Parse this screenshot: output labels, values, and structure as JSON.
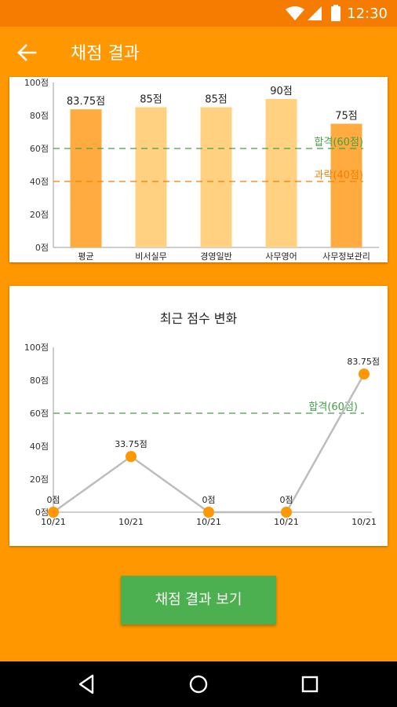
{
  "status_bar": {
    "time": "12:30",
    "icons": [
      "wifi-icon",
      "signal-icon",
      "battery-icon"
    ]
  },
  "app_bar": {
    "title": "채점 결과",
    "back_icon": "arrow-left-icon"
  },
  "colors": {
    "primary": "#FF9800",
    "primary_dark": "#F57C00",
    "bar_avg": "#FFAB40",
    "bar_subject": "#FFD180",
    "pass_line": "#43A047",
    "fail_line": "#F57C00",
    "line": "#BDBDBD",
    "point": "#FF9800",
    "button": "#4CAF50"
  },
  "chart_data": [
    {
      "type": "bar",
      "categories": [
        "평균",
        "비서실무",
        "경영일반",
        "사무영어",
        "사무정보관리"
      ],
      "values": [
        83.75,
        85,
        85,
        90,
        75
      ],
      "value_labels": [
        "83.75점",
        "85점",
        "85점",
        "90점",
        "75점"
      ],
      "highlight": [
        true,
        false,
        false,
        false,
        true
      ],
      "ylim": [
        0,
        100
      ],
      "yticks": [
        "0점",
        "20점",
        "40점",
        "60점",
        "80점",
        "100점"
      ],
      "reference_lines": [
        {
          "label": "합격(60점)",
          "value": 60,
          "color": "#43A047"
        },
        {
          "label": "과락(40점)",
          "value": 40,
          "color": "#F57C00"
        }
      ]
    },
    {
      "type": "line",
      "title": "최근 점수 변화",
      "x": [
        "10/21",
        "10/21",
        "10/21",
        "10/21",
        "10/21"
      ],
      "values": [
        0,
        33.75,
        0,
        0,
        83.75
      ],
      "value_labels": [
        "0점",
        "33.75점",
        "0점",
        "0점",
        "83.75점"
      ],
      "ylim": [
        0,
        100
      ],
      "yticks": [
        "0점",
        "20점",
        "40점",
        "60점",
        "80점",
        "100점"
      ],
      "reference_lines": [
        {
          "label": "합격(60점)",
          "value": 60,
          "color": "#43A047"
        }
      ]
    }
  ],
  "action_button": {
    "label": "채점 결과 보기"
  },
  "nav_bar": {
    "icons": [
      "back-triangle-icon",
      "home-circle-icon",
      "recents-square-icon"
    ]
  }
}
